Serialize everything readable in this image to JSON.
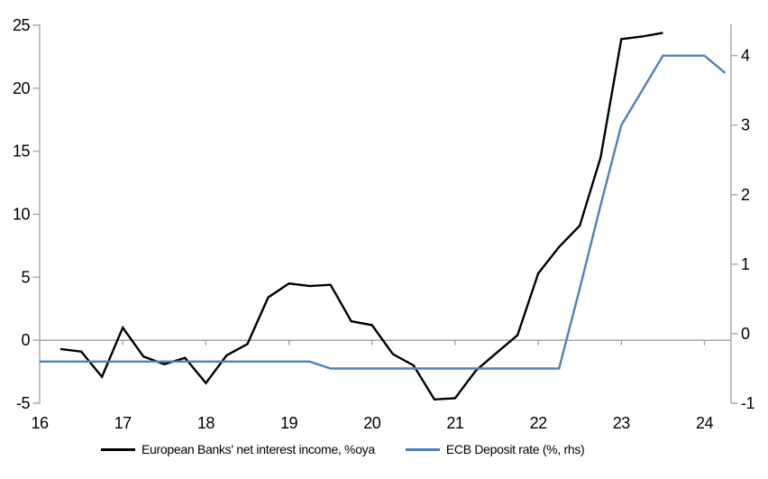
{
  "chart_data": {
    "type": "line",
    "title": "",
    "xlabel": "",
    "ylabel": "",
    "x_axis": {
      "range": [
        16,
        24.32
      ],
      "ticks": [
        16,
        17,
        18,
        19,
        20,
        21,
        22,
        23,
        24
      ]
    },
    "left_axis": {
      "range": [
        -5,
        25.07
      ],
      "ticks": [
        -5,
        0,
        5,
        10,
        15,
        20,
        25
      ]
    },
    "right_axis": {
      "range": [
        -1,
        4.45
      ],
      "ticks": [
        -1,
        0,
        1,
        2,
        3,
        4
      ]
    },
    "grid": "zero-line-only",
    "legend_position": "bottom",
    "axis_color": "#a6a6a6",
    "zero_line_color": "#9d9d9d",
    "series": [
      {
        "name": "European Banks' net interest income, %oya",
        "axis": "left",
        "color": "#000000",
        "x": [
          16.25,
          16.5,
          16.75,
          17,
          17.25,
          17.5,
          17.75,
          18,
          18.25,
          18.5,
          18.75,
          19,
          19.25,
          19.5,
          19.75,
          20,
          20.25,
          20.5,
          20.75,
          21,
          21.25,
          21.5,
          21.75,
          22,
          22.25,
          22.5,
          22.75,
          23,
          23.25,
          23.5
        ],
        "values": [
          -0.7,
          -0.9,
          -2.9,
          1.0,
          -1.3,
          -1.9,
          -1.4,
          -3.4,
          -1.2,
          -0.3,
          3.4,
          4.5,
          4.3,
          4.4,
          1.5,
          1.2,
          -1.1,
          -2.0,
          -4.7,
          -4.6,
          -2.4,
          -1.0,
          0.4,
          5.3,
          7.4,
          9.1,
          14.5,
          23.9,
          24.1,
          24.4
        ]
      },
      {
        "name": "ECB Deposit rate (%, rhs)",
        "axis": "right",
        "color": "#4f81bd",
        "x": [
          16,
          16.25,
          16.5,
          16.75,
          17,
          17.25,
          17.5,
          17.75,
          18,
          18.25,
          18.5,
          18.75,
          19,
          19.25,
          19.5,
          19.75,
          20,
          20.25,
          20.5,
          20.75,
          21,
          21.25,
          21.5,
          21.75,
          22,
          22.25,
          22.5,
          22.75,
          23,
          23.25,
          23.5,
          23.75,
          24,
          24.25
        ],
        "values": [
          -0.4,
          -0.4,
          -0.4,
          -0.4,
          -0.4,
          -0.4,
          -0.4,
          -0.4,
          -0.4,
          -0.4,
          -0.4,
          -0.4,
          -0.4,
          -0.4,
          -0.5,
          -0.5,
          -0.5,
          -0.5,
          -0.5,
          -0.5,
          -0.5,
          -0.5,
          -0.5,
          -0.5,
          -0.5,
          -0.5,
          0.65,
          1.85,
          3.0,
          3.5,
          4.0,
          4.0,
          4.0,
          3.75
        ]
      }
    ]
  }
}
